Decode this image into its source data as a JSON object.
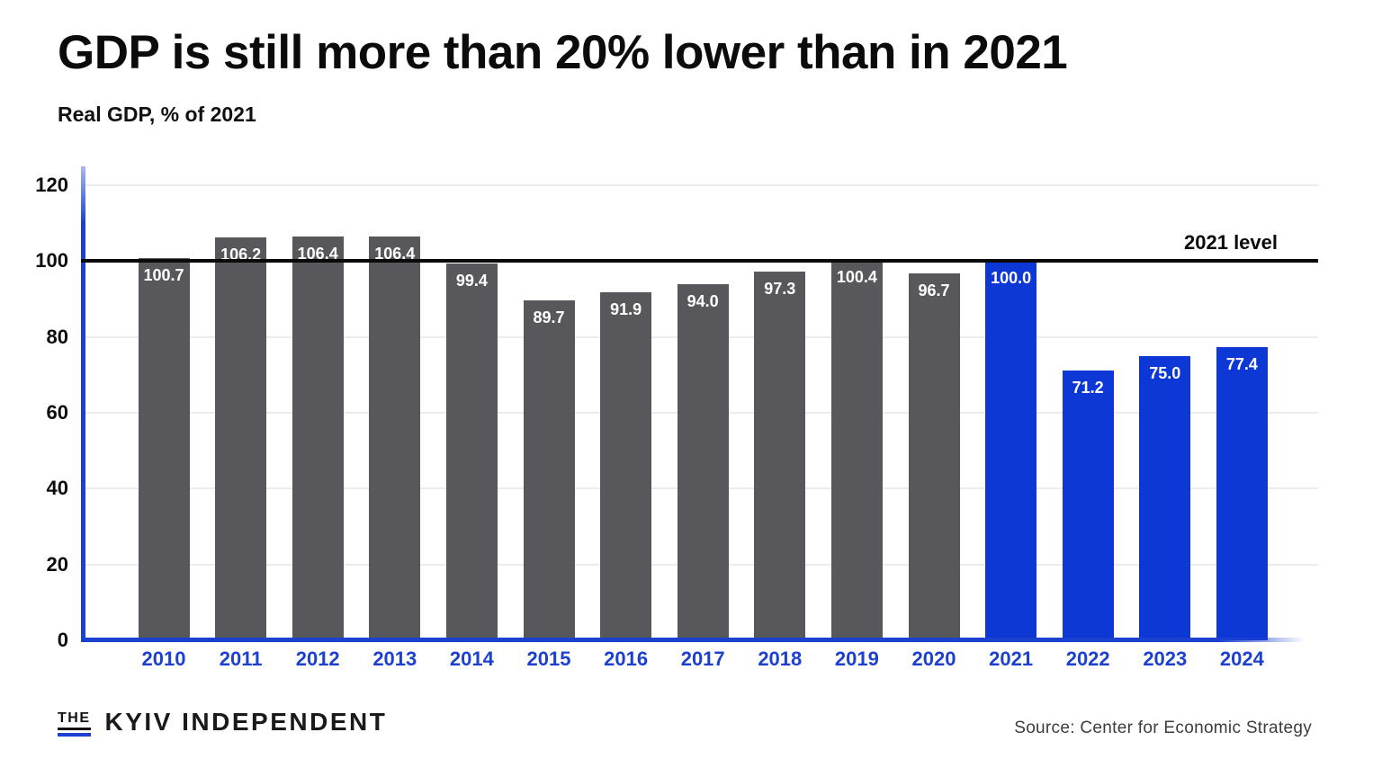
{
  "chart_data": {
    "type": "bar",
    "title": "GDP is still more than 20% lower than in 2021",
    "subtitle": "Real GDP, % of 2021",
    "categories": [
      "2010",
      "2011",
      "2012",
      "2013",
      "2014",
      "2015",
      "2016",
      "2017",
      "2018",
      "2019",
      "2020",
      "2021",
      "2022",
      "2023",
      "2024"
    ],
    "values": [
      100.7,
      106.2,
      106.4,
      106.4,
      99.4,
      89.7,
      91.9,
      94.0,
      97.3,
      100.4,
      96.7,
      100.0,
      71.2,
      75.0,
      77.4
    ],
    "highlighted_categories": [
      "2021",
      "2022",
      "2023",
      "2024"
    ],
    "xlabel": "",
    "ylabel": "",
    "ylim": [
      0,
      125
    ],
    "yticks": [
      0,
      20,
      40,
      60,
      80,
      100,
      120
    ],
    "grid": true,
    "legend_position": "none",
    "reference_line": {
      "value": 100,
      "label": "2021 level"
    },
    "colors": {
      "bar_default": "#58585c",
      "bar_highlight": "#0e38d6",
      "axis_blue": "#1d41cf",
      "reference_line": "#0a0a0a",
      "gridline": "#ececec"
    }
  },
  "footer": {
    "logo_the": "THE",
    "logo_name": "KYIV INDEPENDENT",
    "source": "Source: Center for Economic Strategy"
  }
}
